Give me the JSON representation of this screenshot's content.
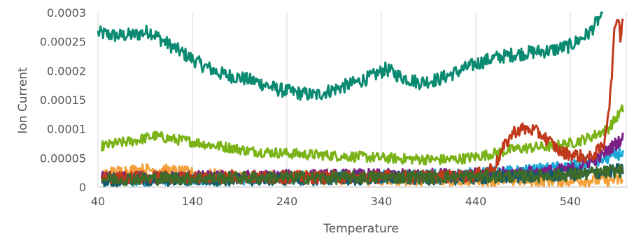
{
  "chart_data": {
    "type": "line",
    "xlabel": "Temperature",
    "ylabel": "Ion Current",
    "xlim": [
      40,
      600
    ],
    "ylim": [
      0,
      0.0003
    ],
    "x_ticks": [
      "40",
      "140",
      "240",
      "340",
      "440",
      "540"
    ],
    "y_ticks": [
      "0",
      "0.00005",
      "0.0001",
      "0.00015",
      "0.0002",
      "0.00025",
      "0.0003"
    ],
    "grid": "vertical",
    "legend": "none",
    "series": [
      {
        "color": "#0b8a72",
        "x": [
          40,
          60,
          80,
          95,
          110,
          130,
          150,
          170,
          190,
          210,
          230,
          250,
          270,
          290,
          310,
          330,
          345,
          360,
          380,
          400,
          420,
          440,
          460,
          480,
          500,
          520,
          540,
          560,
          575
        ],
        "y": [
          0.000265,
          0.00026,
          0.000262,
          0.000268,
          0.00025,
          0.00023,
          0.00021,
          0.000195,
          0.000188,
          0.00018,
          0.000168,
          0.000162,
          0.000158,
          0.000168,
          0.000178,
          0.00019,
          0.000203,
          0.00019,
          0.00018,
          0.000185,
          0.000198,
          0.000212,
          0.000222,
          0.000228,
          0.000232,
          0.000235,
          0.000243,
          0.000265,
          0.0003
        ]
      },
      {
        "color": "#7ab317",
        "x": [
          44,
          60,
          80,
          100,
          120,
          140,
          160,
          180,
          200,
          220,
          240,
          260,
          280,
          300,
          320,
          340,
          360,
          380,
          400,
          420,
          440,
          460,
          480,
          500,
          520,
          540,
          560,
          580,
          596
        ],
        "y": [
          7e-05,
          7.5e-05,
          8e-05,
          8.8e-05,
          8.2e-05,
          7.8e-05,
          7.2e-05,
          6.8e-05,
          6.2e-05,
          6e-05,
          5.8e-05,
          5.6e-05,
          5.5e-05,
          5.3e-05,
          5.2e-05,
          5e-05,
          4.9e-05,
          4.8e-05,
          4.7e-05,
          4.8e-05,
          5.2e-05,
          5.8e-05,
          6.5e-05,
          6.8e-05,
          7e-05,
          7.5e-05,
          8.5e-05,
          0.0001,
          0.000135
        ]
      },
      {
        "color": "#f4a03a",
        "x": [
          44,
          70,
          100,
          130,
          160,
          200,
          250,
          300,
          350,
          400,
          450,
          500,
          550,
          596
        ],
        "y": [
          2.2e-05,
          2.8e-05,
          3e-05,
          2.5e-05,
          2e-05,
          1.8e-05,
          1.6e-05,
          1.5e-05,
          1.4e-05,
          1.3e-05,
          1.3e-05,
          1.2e-05,
          1.2e-05,
          1.2e-05
        ]
      },
      {
        "color": "#1aa8d8",
        "x": [
          44,
          100,
          150,
          200,
          250,
          300,
          350,
          400,
          450,
          500,
          540,
          570,
          596
        ],
        "y": [
          1.2e-05,
          1.3e-05,
          1.4e-05,
          1.5e-05,
          1.6e-05,
          1.7e-05,
          1.8e-05,
          2e-05,
          2.3e-05,
          2.8e-05,
          3.5e-05,
          4.5e-05,
          6e-05
        ]
      },
      {
        "color": "#7b1f86",
        "x": [
          44,
          100,
          150,
          200,
          250,
          300,
          350,
          400,
          450,
          500,
          540,
          570,
          596
        ],
        "y": [
          1.5e-05,
          1.6e-05,
          1.7e-05,
          1.8e-05,
          1.9e-05,
          2e-05,
          2e-05,
          2.1e-05,
          2.2e-05,
          2.5e-05,
          3e-05,
          5e-05,
          8.5e-05
        ]
      },
      {
        "color": "#0f5a6e",
        "x": [
          44,
          100,
          150,
          200,
          250,
          300,
          350,
          400,
          450,
          500,
          550,
          596
        ],
        "y": [
          1.2e-05,
          1.2e-05,
          1.3e-05,
          1.3e-05,
          1.4e-05,
          1.4e-05,
          1.5e-05,
          1.5e-05,
          1.6e-05,
          1.8e-05,
          2.2e-05,
          3e-05
        ]
      },
      {
        "color": "#c0391b",
        "x": [
          44,
          100,
          150,
          200,
          250,
          300,
          350,
          400,
          440,
          460,
          470,
          480,
          490,
          500,
          510,
          520,
          530,
          545,
          560,
          575,
          582,
          587,
          590,
          593,
          596
        ],
        "y": [
          1.6e-05,
          1.7e-05,
          1.7e-05,
          1.7e-05,
          1.7e-05,
          1.7e-05,
          1.8e-05,
          1.8e-05,
          2e-05,
          3.5e-05,
          7e-05,
          9.5e-05,
          0.0001,
          9.8e-05,
          9e-05,
          7.5e-05,
          6e-05,
          5.5e-05,
          5e-05,
          7e-05,
          0.00015,
          0.00027,
          0.0003,
          0.00026,
          0.0003
        ]
      },
      {
        "color": "#3e6b2a",
        "x": [
          44,
          100,
          150,
          200,
          250,
          300,
          350,
          400,
          450,
          500,
          550,
          596
        ],
        "y": [
          1.4e-05,
          1.5e-05,
          1.5e-05,
          1.6e-05,
          1.6e-05,
          1.6e-05,
          1.7e-05,
          1.7e-05,
          1.8e-05,
          1.9e-05,
          2.2e-05,
          2.8e-05
        ]
      }
    ]
  }
}
